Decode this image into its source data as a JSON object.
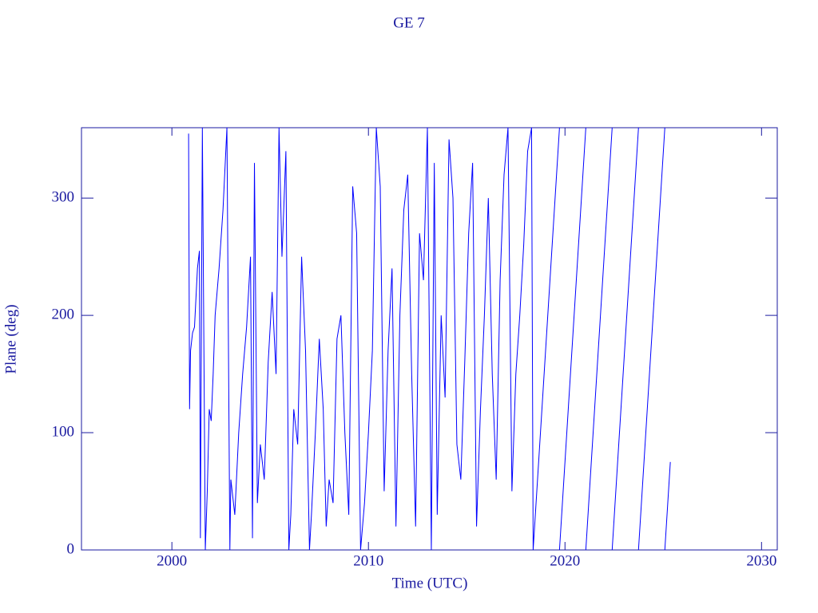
{
  "chart_data": {
    "type": "line",
    "title": "GE 7",
    "x_label": "Time (UTC)",
    "y_label": "Plane (deg)",
    "xlim": [
      1995.4,
      2030.8
    ],
    "xticks": [
      2000,
      2010,
      2020,
      2030
    ],
    "ylim": [
      0,
      360
    ],
    "yticks": [
      0,
      100,
      200,
      300
    ],
    "series": [
      {
        "color": "#0000ff",
        "x": [
          2000.85,
          2000.9,
          2000.95,
          2001.05,
          2001.15,
          2001.3,
          2001.4,
          2001.45,
          2001.55,
          2001.7,
          2001.8,
          2001.9,
          2002.0,
          2002.1,
          2002.2,
          2002.4,
          2002.6,
          2002.8,
          2002.95,
          2003.0,
          2003.2,
          2003.4,
          2003.6,
          2003.8,
          2004.0,
          2004.1,
          2004.2,
          2004.35,
          2004.5,
          2004.7,
          2004.9,
          2005.1,
          2005.3,
          2005.45,
          2005.6,
          2005.8,
          2005.95,
          2006.05,
          2006.2,
          2006.4,
          2006.6,
          2006.8,
          2007.0,
          2007.1,
          2007.3,
          2007.5,
          2007.7,
          2007.85,
          2008.0,
          2008.2,
          2008.4,
          2008.6,
          2008.8,
          2009.0,
          2009.2,
          2009.4,
          2009.6,
          2009.8,
          2010.0,
          2010.2,
          2010.4,
          2010.6,
          2010.8,
          2011.0,
          2011.2,
          2011.4,
          2011.6,
          2011.8,
          2012.0,
          2012.2,
          2012.4,
          2012.6,
          2012.8,
          2013.0,
          2013.2,
          2013.35,
          2013.5,
          2013.7,
          2013.9,
          2014.1,
          2014.3,
          2014.5,
          2014.7,
          2014.9,
          2015.1,
          2015.3,
          2015.5,
          2015.7,
          2015.9,
          2016.1,
          2016.3,
          2016.5,
          2016.7,
          2016.9,
          2017.1,
          2017.3,
          2017.5,
          2017.7,
          2017.9,
          2018.1,
          2018.3,
          2018.38,
          2019.72,
          2019.72,
          2019.72,
          2021.06,
          2021.06,
          2021.06,
          2022.4,
          2022.4,
          2022.4,
          2023.74,
          2023.74,
          2023.74,
          2025.08,
          2025.08,
          2025.08,
          2025.36
        ],
        "values": [
          355,
          120,
          170,
          185,
          190,
          240,
          255,
          10,
          360,
          0,
          50,
          120,
          110,
          150,
          200,
          240,
          290,
          360,
          0,
          60,
          30,
          100,
          150,
          190,
          250,
          10,
          330,
          40,
          90,
          60,
          160,
          220,
          150,
          360,
          250,
          340,
          0,
          30,
          120,
          90,
          250,
          170,
          0,
          30,
          100,
          180,
          120,
          20,
          60,
          40,
          180,
          200,
          100,
          30,
          310,
          270,
          0,
          40,
          100,
          170,
          360,
          310,
          50,
          170,
          240,
          20,
          200,
          290,
          320,
          150,
          20,
          270,
          230,
          360,
          0,
          330,
          30,
          200,
          130,
          350,
          300,
          90,
          60,
          160,
          270,
          330,
          20,
          120,
          200,
          300,
          150,
          60,
          230,
          320,
          360,
          50,
          150,
          200,
          260,
          340,
          360,
          0,
          360,
          null,
          0,
          360,
          null,
          0,
          360,
          null,
          0,
          360,
          null,
          0,
          360,
          null,
          0,
          75
        ]
      }
    ]
  }
}
